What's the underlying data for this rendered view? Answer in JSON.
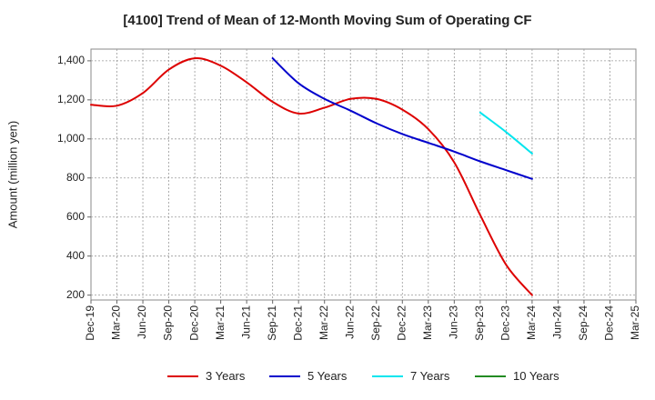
{
  "chart_data": {
    "type": "line",
    "title": "[4100]  Trend of Mean of 12-Month Moving Sum of Operating CF",
    "xlabel": "",
    "ylabel": "Amount (million yen)",
    "ylim": [
      175,
      1460
    ],
    "yticks": [
      200,
      400,
      600,
      800,
      1000,
      1200,
      1400
    ],
    "ytick_labels": [
      "200",
      "400",
      "600",
      "800",
      "1,000",
      "1,200",
      "1,400"
    ],
    "x_labels": [
      "Dec-19",
      "Mar-20",
      "Jun-20",
      "Sep-20",
      "Dec-20",
      "Mar-21",
      "Jun-21",
      "Sep-21",
      "Dec-21",
      "Mar-22",
      "Jun-22",
      "Sep-22",
      "Dec-22",
      "Mar-23",
      "Jun-23",
      "Sep-23",
      "Dec-23",
      "Mar-24",
      "Jun-24",
      "Sep-24",
      "Dec-24",
      "Mar-25"
    ],
    "grid": true,
    "series": [
      {
        "name": "3 Years",
        "color": "#dd0000",
        "x": [
          "Dec-19",
          "Mar-20",
          "Jun-20",
          "Sep-20",
          "Dec-20",
          "Mar-21",
          "Jun-21",
          "Sep-21",
          "Dec-21",
          "Mar-22",
          "Jun-22",
          "Sep-22",
          "Dec-22",
          "Mar-23",
          "Jun-23",
          "Sep-23",
          "Dec-23",
          "Mar-24"
        ],
        "values": [
          1175,
          1170,
          1235,
          1355,
          1413,
          1375,
          1290,
          1190,
          1130,
          1160,
          1205,
          1205,
          1150,
          1050,
          880,
          610,
          355,
          200
        ]
      },
      {
        "name": "5 Years",
        "color": "#0000cc",
        "x": [
          "Sep-21",
          "Dec-21",
          "Mar-22",
          "Jun-22",
          "Sep-22",
          "Dec-22",
          "Mar-23",
          "Jun-23",
          "Sep-23",
          "Dec-23",
          "Mar-24"
        ],
        "values": [
          1413,
          1285,
          1205,
          1145,
          1080,
          1025,
          980,
          935,
          885,
          840,
          795
        ]
      },
      {
        "name": "7 Years",
        "color": "#00e5ee",
        "x": [
          "Sep-23",
          "Dec-23",
          "Mar-24"
        ],
        "values": [
          1135,
          1035,
          925
        ]
      },
      {
        "name": "10 Years",
        "color": "#228b22",
        "x": [],
        "values": []
      }
    ]
  }
}
